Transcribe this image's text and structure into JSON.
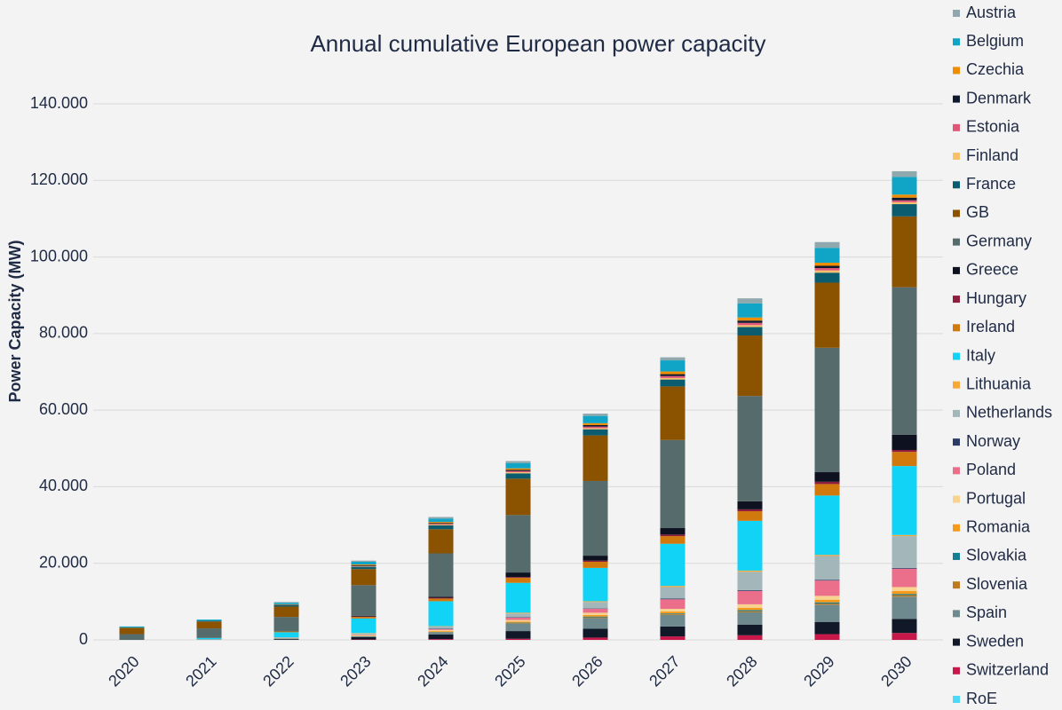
{
  "chart_data": {
    "type": "stacked_bar",
    "title": "Annual cumulative European power capacity",
    "y_label": "Power Capacity (MW)",
    "categories": [
      "2020",
      "2021",
      "2022",
      "2023",
      "2024",
      "2025",
      "2026",
      "2027",
      "2028",
      "2029",
      "2030"
    ],
    "ylim": [
      0,
      140000
    ],
    "yticks": [
      0,
      {
        "value": 20000,
        "label": "20.000"
      },
      {
        "value": 40000,
        "label": "40.000"
      },
      {
        "value": 60000,
        "label": "60.000"
      },
      {
        "value": 80000,
        "label": "80.000"
      },
      {
        "value": 100000,
        "label": "100.000"
      },
      {
        "value": 120000,
        "label": "120.000"
      },
      {
        "value": 140000,
        "label": "140.000"
      }
    ],
    "grid": true,
    "legend": "right",
    "series": [
      {
        "name": "Austria",
        "color": "#8fa8ad",
        "values": [
          0,
          0,
          200,
          300,
          400,
          500,
          600,
          800,
          1300,
          1500,
          1500
        ]
      },
      {
        "name": "Belgium",
        "color": "#10a5c6",
        "values": [
          300,
          300,
          400,
          700,
          900,
          1400,
          1900,
          2900,
          3700,
          3900,
          4600
        ]
      },
      {
        "name": "Czechia",
        "color": "#ee8d00",
        "values": [
          0,
          0,
          100,
          200,
          300,
          400,
          500,
          700,
          800,
          800,
          800
        ]
      },
      {
        "name": "Denmark",
        "color": "#10182e",
        "values": [
          0,
          0,
          100,
          200,
          200,
          300,
          400,
          500,
          600,
          600,
          700
        ]
      },
      {
        "name": "Estonia",
        "color": "#e2567a",
        "values": [
          0,
          0,
          0,
          100,
          200,
          300,
          400,
          500,
          600,
          600,
          500
        ]
      },
      {
        "name": "Finland",
        "color": "#f5c26b",
        "values": [
          0,
          0,
          0,
          100,
          200,
          300,
          300,
          400,
          500,
          600,
          500
        ]
      },
      {
        "name": "France",
        "color": "#0a5c6e",
        "values": [
          0,
          200,
          400,
          600,
          1000,
          1400,
          1600,
          1800,
          2200,
          2600,
          3200
        ]
      },
      {
        "name": "GB",
        "color": "#8b5200",
        "values": [
          1700,
          1800,
          2700,
          4200,
          6300,
          9500,
          11900,
          14000,
          15800,
          17000,
          18500
        ]
      },
      {
        "name": "Germany",
        "color": "#566b6c",
        "values": [
          1500,
          2500,
          3800,
          8000,
          11300,
          15000,
          19500,
          23000,
          27500,
          32500,
          38500
        ]
      },
      {
        "name": "Greece",
        "color": "#0d1120",
        "values": [
          0,
          0,
          0,
          200,
          300,
          1200,
          1300,
          1700,
          2100,
          2500,
          4000
        ]
      },
      {
        "name": "Hungary",
        "color": "#8e1d3e",
        "values": [
          0,
          0,
          0,
          100,
          200,
          200,
          300,
          400,
          500,
          600,
          500
        ]
      },
      {
        "name": "Ireland",
        "color": "#d1790c",
        "values": [
          0,
          0,
          200,
          400,
          700,
          1300,
          1600,
          2000,
          2500,
          3000,
          3700
        ]
      },
      {
        "name": "Italy",
        "color": "#10d3f5",
        "values": [
          0,
          300,
          1300,
          3800,
          6500,
          7800,
          8700,
          11000,
          13000,
          15500,
          18000
        ]
      },
      {
        "name": "Lithuania",
        "color": "#f7a838",
        "values": [
          0,
          0,
          0,
          100,
          100,
          200,
          200,
          300,
          300,
          300,
          300
        ]
      },
      {
        "name": "Netherlands",
        "color": "#a3b7bb",
        "values": [
          0,
          100,
          200,
          300,
          600,
          1000,
          1700,
          3000,
          4800,
          6200,
          8300
        ]
      },
      {
        "name": "Norway",
        "color": "#2b3b66",
        "values": [
          0,
          0,
          0,
          0,
          100,
          100,
          100,
          200,
          200,
          200,
          200
        ]
      },
      {
        "name": "Poland",
        "color": "#eb6e8b",
        "values": [
          0,
          0,
          0,
          100,
          200,
          600,
          1000,
          2500,
          3500,
          4000,
          4800
        ]
      },
      {
        "name": "Portugal",
        "color": "#f8d38f",
        "values": [
          0,
          0,
          100,
          200,
          300,
          400,
          600,
          700,
          900,
          1000,
          1000
        ]
      },
      {
        "name": "Romania",
        "color": "#f59a1b",
        "values": [
          0,
          0,
          0,
          100,
          200,
          300,
          400,
          500,
          600,
          700,
          800
        ]
      },
      {
        "name": "Slovakia",
        "color": "#137e94",
        "values": [
          0,
          0,
          0,
          0,
          100,
          100,
          200,
          200,
          300,
          300,
          300
        ]
      },
      {
        "name": "Slovenia",
        "color": "#bf7a1f",
        "values": [
          0,
          0,
          0,
          0,
          100,
          100,
          200,
          200,
          300,
          300,
          400
        ]
      },
      {
        "name": "Spain",
        "color": "#6f8a8e",
        "values": [
          0,
          100,
          200,
          300,
          500,
          2000,
          2800,
          3000,
          3200,
          4500,
          5800
        ]
      },
      {
        "name": "Sweden",
        "color": "#111827",
        "values": [
          0,
          0,
          200,
          600,
          1200,
          2000,
          2300,
          2600,
          2800,
          3200,
          3700
        ]
      },
      {
        "name": "Switzerland",
        "color": "#c8184a",
        "values": [
          0,
          0,
          0,
          100,
          200,
          300,
          600,
          900,
          1200,
          1500,
          1800
        ]
      },
      {
        "name": "RoE",
        "color": "#4dd8f5",
        "values": [
          0,
          0,
          0,
          0,
          0,
          0,
          0,
          0,
          0,
          0,
          0
        ]
      }
    ]
  }
}
